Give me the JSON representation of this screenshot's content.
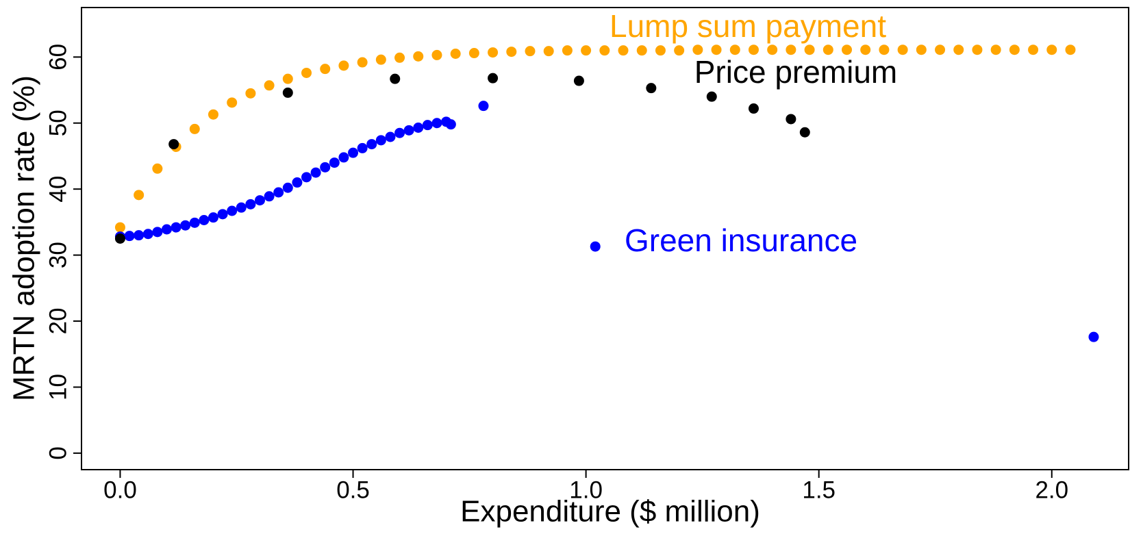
{
  "chart_data": {
    "type": "scatter",
    "xlabel": "Expenditure ($ million)",
    "ylabel": "MRTN adoption rate (%)",
    "xlim": [
      -0.083,
      2.165
    ],
    "ylim": [
      -2.5,
      67.5
    ],
    "xticks": [
      {
        "value": 0,
        "label": "0.0"
      },
      0.5,
      {
        "value": 1,
        "label": "1.0"
      },
      1.5,
      {
        "value": 2,
        "label": "2.0"
      }
    ],
    "yticks": [
      0,
      10,
      20,
      30,
      40,
      50,
      60
    ],
    "series": [
      {
        "name": "Lump sum payment",
        "color": "#ffa500",
        "x": [
          0,
          0.04,
          0.08,
          0.12,
          0.16,
          0.2,
          0.24,
          0.28,
          0.32,
          0.36,
          0.4,
          0.44,
          0.48,
          0.52,
          0.56,
          0.6,
          0.64,
          0.68,
          0.72,
          0.76,
          0.8,
          0.84,
          0.88,
          0.92,
          0.96,
          1.0,
          1.04,
          1.08,
          1.12,
          1.16,
          1.2,
          1.24,
          1.28,
          1.32,
          1.36,
          1.4,
          1.44,
          1.48,
          1.52,
          1.56,
          1.6,
          1.64,
          1.68,
          1.72,
          1.76,
          1.8,
          1.84,
          1.88,
          1.92,
          1.96,
          2.0,
          2.04
        ],
        "values": [
          34.2,
          39.1,
          43.1,
          46.4,
          49.1,
          51.3,
          53.1,
          54.5,
          55.7,
          56.7,
          57.6,
          58.2,
          58.7,
          59.2,
          59.6,
          59.9,
          60.1,
          60.3,
          60.5,
          60.6,
          60.7,
          60.8,
          60.9,
          60.9,
          61.0,
          61.0,
          61.0,
          61.0,
          61.0,
          61.0,
          61.0,
          61.1,
          61.1,
          61.1,
          61.1,
          61.1,
          61.1,
          61.1,
          61.1,
          61.1,
          61.1,
          61.1,
          61.1,
          61.1,
          61.1,
          61.1,
          61.1,
          61.1,
          61.1,
          61.1,
          61.1,
          61.1
        ]
      },
      {
        "name": "Green insurance",
        "color": "#0000ff",
        "x": [
          0,
          0.02,
          0.04,
          0.06,
          0.08,
          0.1,
          0.12,
          0.14,
          0.16,
          0.18,
          0.2,
          0.22,
          0.24,
          0.26,
          0.28,
          0.3,
          0.32,
          0.34,
          0.36,
          0.38,
          0.4,
          0.42,
          0.44,
          0.46,
          0.48,
          0.5,
          0.52,
          0.54,
          0.56,
          0.58,
          0.6,
          0.62,
          0.64,
          0.66,
          0.68,
          0.7,
          0.71,
          0.78,
          1.02,
          2.09
        ],
        "values": [
          32.8,
          32.9,
          33.0,
          33.2,
          33.5,
          33.9,
          34.2,
          34.5,
          34.9,
          35.3,
          35.7,
          36.2,
          36.7,
          37.2,
          37.7,
          38.3,
          38.9,
          39.5,
          40.2,
          41.0,
          41.8,
          42.5,
          43.3,
          44.0,
          44.8,
          45.5,
          46.2,
          46.8,
          47.4,
          47.9,
          48.5,
          48.9,
          49.3,
          49.7,
          50.0,
          50.2,
          49.8,
          52.6,
          31.3,
          17.6
        ]
      },
      {
        "name": "Price premium",
        "color": "#000000",
        "x": [
          0,
          0.115,
          0.36,
          0.59,
          0.8,
          0.985,
          1.14,
          1.27,
          1.36,
          1.44,
          1.47
        ],
        "values": [
          32.5,
          46.8,
          54.6,
          56.7,
          56.8,
          56.4,
          55.3,
          54.0,
          52.2,
          50.6,
          48.6
        ]
      }
    ]
  }
}
